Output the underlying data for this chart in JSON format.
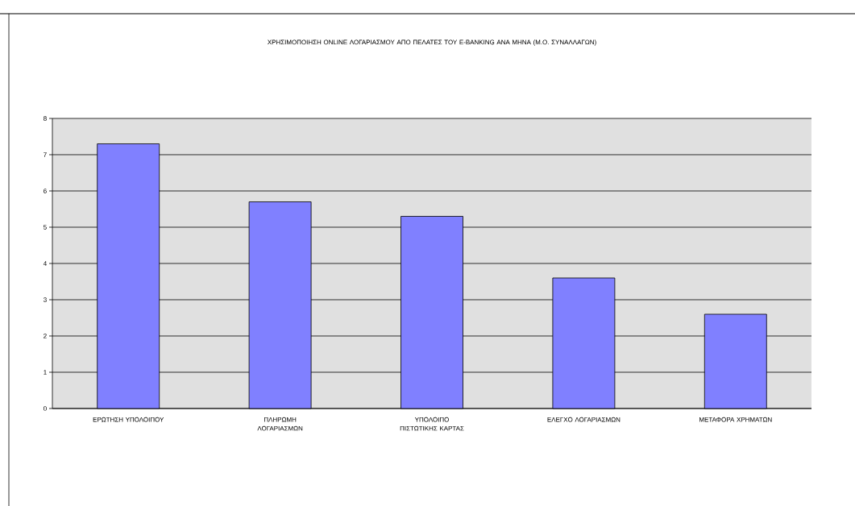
{
  "chart_data": {
    "type": "bar",
    "title": "ΧΡΗΣΙΜΟΠΟΙΗΣΗ ONLINE ΛΟΓΑΡΙΑΣΜΟΥ ΑΠΟ ΠΕΛΑΤΕΣ ΤΟΥ E-BANKING ΑΝΑ ΜΗΝΑ (Μ.Ο. ΣΥΝΑΛΛΑΓΩΝ)",
    "categories": [
      "ΕΡΩΤΗΣΗ ΥΠΟΛΟΙΠΟΥ",
      "ΠΛΗΡΩΜΗ ΛΟΓΑΡΙΑΣΜΩΝ",
      "ΥΠΟΛΟΙΠΟ ΠΙΣΤΩΤΙΚΗΣ ΚΑΡΤΑΣ",
      "ΕΛΕΓΧΟ ΛΟΓΑΡΙΑΣΜΩΝ",
      "ΜΕΤΑΦΟΡΑ ΧΡΗΜΑΤΩΝ"
    ],
    "values": [
      7.3,
      5.7,
      5.3,
      3.6,
      2.6
    ],
    "color": "#8080ff",
    "ylim": [
      0,
      8
    ],
    "yticks": [
      0,
      1,
      2,
      3,
      4,
      5,
      6,
      7,
      8
    ],
    "grid": "y"
  }
}
